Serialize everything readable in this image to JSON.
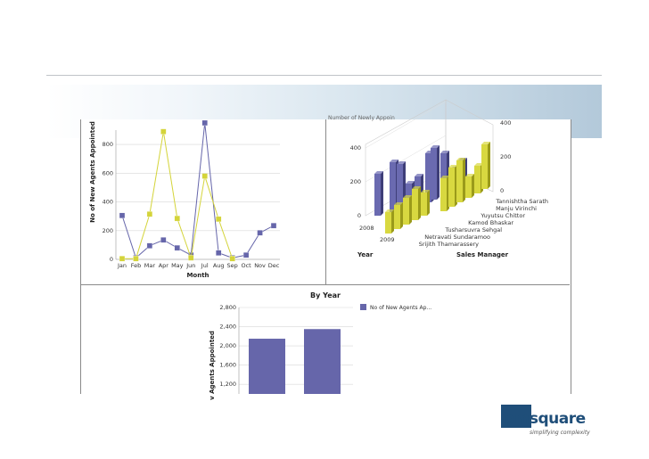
{
  "colors": {
    "series_a": "#6666aa",
    "series_b": "#d4d43a",
    "grid": "#d8d8d8"
  },
  "chart_data": [
    {
      "type": "line",
      "xlabel": "Month",
      "ylabel": "No of New Agents Appointed",
      "categories": [
        "Jan",
        "Feb",
        "Mar",
        "Apr",
        "May",
        "Jun",
        "Jul",
        "Aug",
        "Sep",
        "Oct",
        "Nov",
        "Dec"
      ],
      "yticks": [
        "0",
        "200",
        "400",
        "600",
        "800"
      ],
      "ylim": [
        0,
        900
      ],
      "series": [
        {
          "values": [
            305,
            10,
            95,
            135,
            80,
            30,
            950,
            45,
            10,
            30,
            185,
            235
          ]
        },
        {
          "values": [
            5,
            5,
            315,
            890,
            285,
            10,
            580,
            280,
            5,
            null,
            null,
            null
          ]
        }
      ],
      "grid": true
    },
    {
      "type": "bar",
      "title_fragment": "Number of Newly Appoin",
      "xlabel": "Year",
      "zlabel": "Sales Manager",
      "years": [
        "2008",
        "2009"
      ],
      "yticks_left": [
        "0",
        "200",
        "400"
      ],
      "yticks_right": [
        "0",
        "200",
        "400"
      ],
      "managers": [
        "Tannishtha Sarath",
        "Manju Virinchi",
        "Yuyutsu Chittor",
        "Kamod Bhaskar",
        "Tusharsuvra Sehgal",
        "Netravati Sundaramoo",
        "Srijith Thamarassery"
      ]
    },
    {
      "type": "bar",
      "title": "By Year",
      "ylabel": "v Agents Appointed",
      "yticks": [
        "1,200",
        "1,600",
        "2,000",
        "2,400",
        "2,800"
      ],
      "ylim": [
        1000,
        2800
      ],
      "values": [
        2150,
        2350
      ],
      "legend": [
        "No of New Agents Ap..."
      ],
      "legend_position": "right",
      "grid": true
    }
  ],
  "logo": {
    "brand": "pmsquare",
    "tagline": "simplifying complexity"
  }
}
